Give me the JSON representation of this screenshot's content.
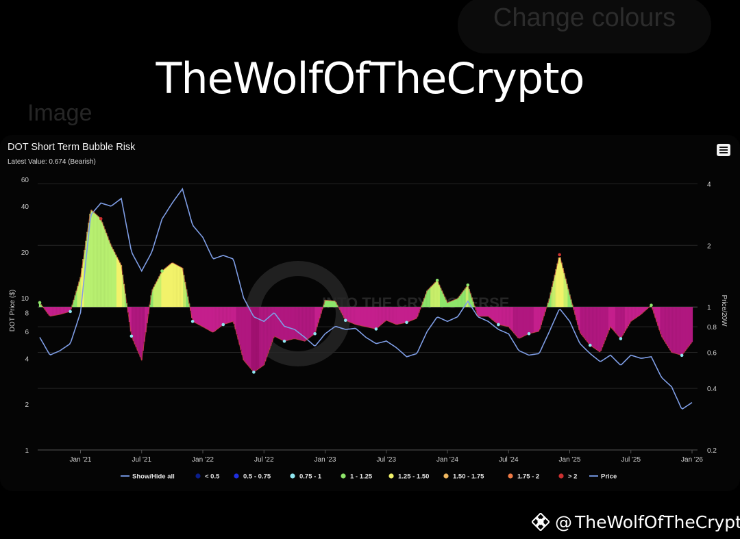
{
  "overlay": {
    "change_colours_button": "Change colours",
    "image_label": "Image",
    "headline": "TheWolfOfTheCrypto",
    "footer_at": "@",
    "footer_handle": "TheWolfOfTheCrypto",
    "footer_logo_icon": "binance-logo-icon"
  },
  "chart": {
    "title": "DOT Short Term Bubble Risk",
    "subtitle": "Latest Value: 0.674 (Bearish)",
    "menu_icon": "hamburger-menu-icon",
    "watermark": "INTO THE CRYPTOVERSE"
  },
  "chart_data": {
    "type": "area",
    "title": "DOT Short Term Bubble Risk",
    "subtitle": "Latest Value: 0.674 (Bearish)",
    "latest_value": 0.674,
    "latest_status": "Bearish",
    "xlabel": "",
    "ylabel_left": "DOT Price ($)",
    "ylabel_right": "Price/20W",
    "x_tick_labels": [
      "Jan '21",
      "Jul '21",
      "Jan '22",
      "Jul '22",
      "Jan '23",
      "Jul '23",
      "Jan '24",
      "Jul '24",
      "Jan '25",
      "Jul '25",
      "Jan '26"
    ],
    "y_left_scale": "log",
    "y_left_ticks": [
      1,
      2,
      4,
      6,
      8,
      10,
      20,
      40,
      60
    ],
    "y_left_range": [
      1,
      60
    ],
    "y_right_scale": "log",
    "y_right_ticks": [
      0.2,
      0.4,
      0.6,
      0.8,
      1,
      2,
      4
    ],
    "y_right_range": [
      0.2,
      4.2
    ],
    "baseline": 1,
    "grid": true,
    "legend_position": "bottom",
    "legend": [
      {
        "label": "Show/Hide all",
        "color": "#6e8fd6",
        "marker": "line"
      },
      {
        "label": "< 0.5",
        "color": "#0b1e8c",
        "marker": "dot"
      },
      {
        "label": "0.5 - 0.75",
        "color": "#1f2fe0",
        "marker": "dot"
      },
      {
        "label": "0.75 - 1",
        "color": "#8fe6f0",
        "marker": "dot"
      },
      {
        "label": "1 - 1.25",
        "color": "#8ee56a",
        "marker": "dot"
      },
      {
        "label": "1.25 - 1.50",
        "color": "#f2f26a",
        "marker": "dot"
      },
      {
        "label": "1.50 - 1.75",
        "color": "#f0b860",
        "marker": "dot"
      },
      {
        "label": "1.75 - 2",
        "color": "#ee7a45",
        "marker": "dot"
      },
      {
        "label": "> 2",
        "color": "#cc3030",
        "marker": "dot"
      },
      {
        "label": "Price",
        "color": "#6e8fd6",
        "marker": "line"
      }
    ],
    "dates": [
      "2020-09",
      "2020-10",
      "2020-11",
      "2020-12",
      "2021-01",
      "2021-02",
      "2021-03",
      "2021-04",
      "2021-05",
      "2021-06",
      "2021-07",
      "2021-08",
      "2021-09",
      "2021-10",
      "2021-11",
      "2021-12",
      "2022-01",
      "2022-02",
      "2022-03",
      "2022-04",
      "2022-05",
      "2022-06",
      "2022-07",
      "2022-08",
      "2022-09",
      "2022-10",
      "2022-11",
      "2022-12",
      "2023-01",
      "2023-02",
      "2023-03",
      "2023-04",
      "2023-05",
      "2023-06",
      "2023-07",
      "2023-08",
      "2023-09",
      "2023-10",
      "2023-11",
      "2023-12",
      "2024-01",
      "2024-02",
      "2024-03",
      "2024-04",
      "2024-05",
      "2024-06",
      "2024-07",
      "2024-08",
      "2024-09",
      "2024-10",
      "2024-11",
      "2024-12",
      "2025-01",
      "2025-02",
      "2025-03",
      "2025-04",
      "2025-05",
      "2025-06",
      "2025-07",
      "2025-08",
      "2025-09",
      "2025-10",
      "2025-11",
      "2025-12",
      "2026-01"
    ],
    "series": [
      {
        "name": "Price",
        "axis": "left",
        "values": [
          5.5,
          4.2,
          4.5,
          5.0,
          8.0,
          35,
          42,
          40,
          45,
          20,
          15,
          20,
          33,
          42,
          52,
          30,
          25,
          18,
          19,
          18,
          10,
          7.5,
          7.0,
          8.0,
          6.5,
          6.2,
          5.5,
          4.8,
          5.8,
          6.5,
          6.2,
          6.3,
          5.5,
          5.0,
          5.2,
          4.7,
          4.1,
          4.3,
          6.0,
          7.5,
          7.0,
          7.5,
          9.5,
          7.5,
          7.0,
          6.2,
          5.8,
          4.5,
          4.2,
          4.3,
          6.0,
          8.5,
          7.0,
          5.0,
          4.3,
          3.8,
          4.2,
          3.6,
          4.2,
          4.0,
          4.1,
          3.0,
          2.6,
          1.85,
          2.05
        ]
      },
      {
        "name": "Price/20W",
        "axis": "right",
        "values": [
          1.05,
          0.9,
          0.92,
          0.95,
          1.4,
          3.0,
          2.7,
          2.0,
          1.6,
          0.72,
          0.55,
          1.2,
          1.5,
          1.65,
          1.55,
          0.85,
          0.8,
          0.75,
          0.82,
          0.85,
          0.55,
          0.48,
          0.52,
          0.72,
          0.68,
          0.7,
          0.68,
          0.74,
          1.08,
          1.07,
          0.86,
          0.82,
          0.8,
          0.78,
          0.86,
          0.82,
          0.84,
          0.88,
          1.2,
          1.35,
          1.05,
          1.1,
          1.28,
          0.9,
          0.9,
          0.82,
          0.8,
          0.7,
          0.74,
          0.76,
          1.1,
          1.8,
          1.15,
          0.75,
          0.65,
          0.6,
          0.8,
          0.7,
          0.85,
          0.92,
          1.02,
          0.72,
          0.6,
          0.58,
          0.674
        ]
      }
    ]
  }
}
